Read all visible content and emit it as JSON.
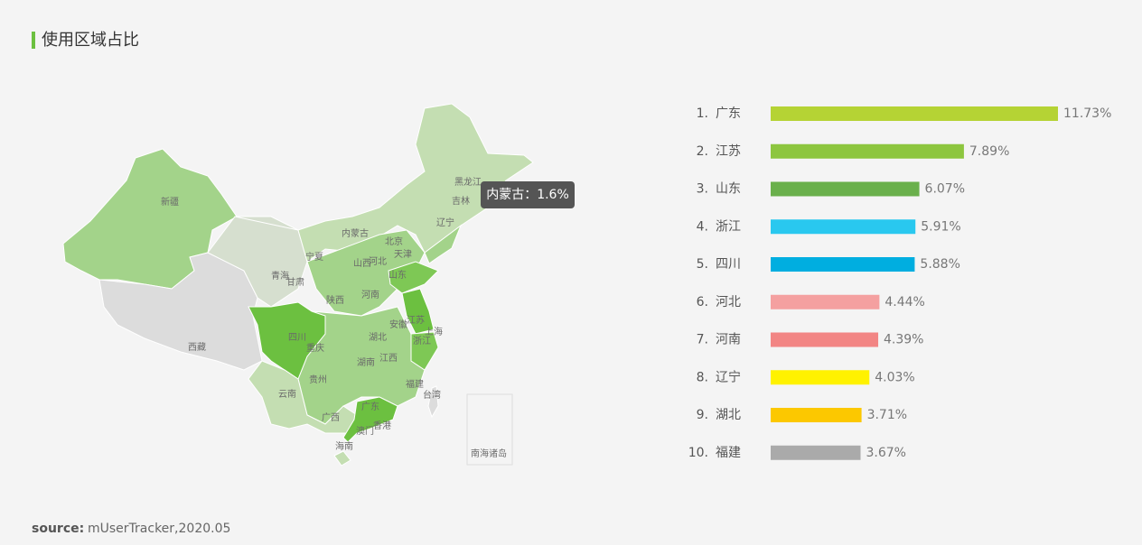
{
  "header": {
    "title": "使用区域占比"
  },
  "chart_data": {
    "type": "bar",
    "orientation": "horizontal",
    "ranks": [
      "1.",
      "2.",
      "3.",
      "4.",
      "5.",
      "6.",
      "7.",
      "8.",
      "9.",
      "10."
    ],
    "categories": [
      "广东",
      "江苏",
      "山东",
      "浙江",
      "四川",
      "河北",
      "河南",
      "辽宁",
      "湖北",
      "福建"
    ],
    "values": [
      11.73,
      7.89,
      6.07,
      5.91,
      5.88,
      4.44,
      4.39,
      4.03,
      3.71,
      3.67
    ],
    "value_labels": [
      "11.73%",
      "7.89%",
      "6.07%",
      "5.91%",
      "5.88%",
      "4.44%",
      "4.39%",
      "4.03%",
      "3.71%",
      "3.67%"
    ],
    "colors": [
      "#b5d334",
      "#8dc63f",
      "#6ab04c",
      "#29c8ef",
      "#00aee0",
      "#f4a0a0",
      "#f28584",
      "#fff200",
      "#fcc800",
      "#aaaaaa"
    ]
  },
  "map": {
    "labels": [
      "新疆",
      "西藏",
      "青海",
      "甘肃",
      "宁夏",
      "内蒙古",
      "黑龙江",
      "吉林",
      "辽宁",
      "北京",
      "天津",
      "河北",
      "山西",
      "山东",
      "陕西",
      "河南",
      "四川",
      "重庆",
      "湖北",
      "安徽",
      "江苏",
      "上海",
      "浙江",
      "湖南",
      "江西",
      "贵州",
      "云南",
      "福建",
      "台湾",
      "广西",
      "广东",
      "香港",
      "澳门",
      "海南",
      "南海诸岛"
    ],
    "tooltip": "内蒙古：1.6%"
  },
  "source": {
    "label": "source:",
    "text": "mUserTracker,2020.05"
  }
}
